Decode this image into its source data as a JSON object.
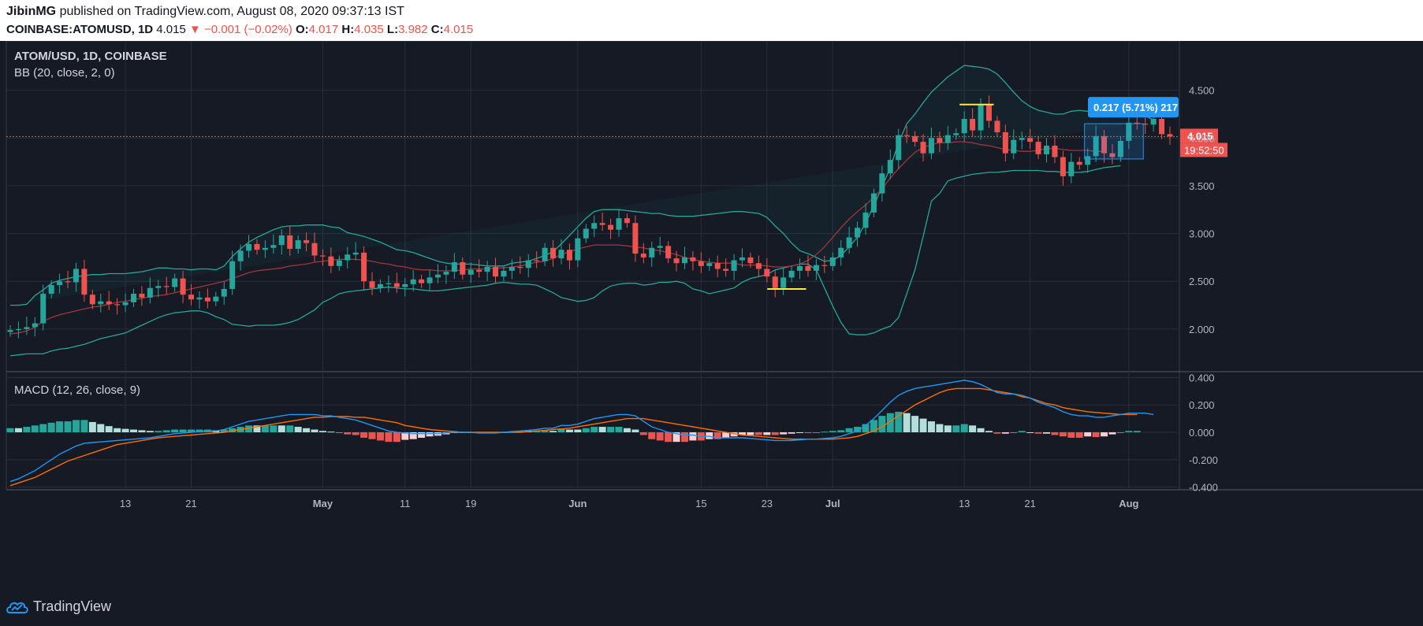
{
  "header": {
    "author": "JibinMG",
    "published_text": "published on TradingView.com, August 08, 2020 09:37:13 IST",
    "symbol": "COINBASE:ATOMUSD, 1D",
    "last": "4.015",
    "change": "−0.001 (−0.02%)",
    "open_label": "O:",
    "open": "4.017",
    "high_label": "H:",
    "high": "4.035",
    "low_label": "L:",
    "low": "3.982",
    "close_label": "C:",
    "close": "4.015"
  },
  "footer": {
    "brand": "TradingView"
  },
  "colors": {
    "up": "#26a69a",
    "down": "#ef5350",
    "bb_band": "#26a69a",
    "bb_basis": "#a0363b",
    "macd": "#2196f3",
    "signal": "#ff6d00",
    "hist_up_strong": "#26a69a",
    "hist_up_weak": "#b2dfdb",
    "hist_down_strong": "#ef5350",
    "hist_down_weak": "#ffcdd2"
  },
  "chart_data": [
    {
      "type": "candlestick",
      "title": "ATOM/USD, 1D, COINBASE",
      "indicator": "BB (20, close, 2, 0)",
      "x_ticks": [
        "13",
        "21",
        "May",
        "11",
        "19",
        "Jun",
        "15",
        "23",
        "Jul",
        "13",
        "21",
        "Aug"
      ],
      "y_ticks": [
        "2.000",
        "2.500",
        "3.000",
        "3.500",
        "4.000",
        "4.500"
      ],
      "ylim": [
        1.62,
        4.95
      ],
      "last_price_label": "4.015",
      "countdown_label": "19:52:50",
      "measure_label": "0.217 (5.71%) 217",
      "close": [
        1.99,
        2.0,
        2.02,
        2.06,
        2.37,
        2.46,
        2.5,
        2.49,
        2.63,
        2.36,
        2.26,
        2.29,
        2.26,
        2.25,
        2.28,
        2.37,
        2.33,
        2.43,
        2.45,
        2.44,
        2.53,
        2.36,
        2.31,
        2.33,
        2.29,
        2.34,
        2.42,
        2.71,
        2.82,
        2.89,
        2.83,
        2.85,
        2.88,
        2.98,
        2.84,
        2.93,
        2.9,
        2.77,
        2.76,
        2.66,
        2.72,
        2.78,
        2.8,
        2.5,
        2.43,
        2.47,
        2.48,
        2.44,
        2.47,
        2.52,
        2.48,
        2.54,
        2.57,
        2.6,
        2.7,
        2.57,
        2.62,
        2.6,
        2.65,
        2.55,
        2.61,
        2.65,
        2.64,
        2.72,
        2.71,
        2.85,
        2.74,
        2.83,
        2.72,
        2.95,
        3.05,
        3.11,
        3.09,
        3.04,
        3.16,
        3.11,
        2.79,
        2.75,
        2.85,
        2.87,
        2.74,
        2.69,
        2.75,
        2.71,
        2.66,
        2.69,
        2.63,
        2.61,
        2.72,
        2.75,
        2.69,
        2.63,
        2.55,
        2.43,
        2.54,
        2.61,
        2.66,
        2.61,
        2.67,
        2.66,
        2.75,
        2.85,
        2.96,
        3.06,
        3.22,
        3.42,
        3.63,
        3.77,
        4.03,
        4.02,
        3.96,
        3.84,
        4.0,
        3.95,
        4.03,
        4.05,
        4.2,
        4.08,
        4.35,
        4.18,
        4.06,
        3.84,
        3.98,
        4.0,
        3.96,
        3.83,
        3.92,
        3.8,
        3.6,
        3.75,
        3.72,
        3.81,
        4.02,
        3.84,
        3.8,
        3.97,
        4.16,
        4.15,
        4.14,
        4.2,
        4.04,
        4.015
      ],
      "bb_upper": [
        2.25,
        2.25,
        2.26,
        2.35,
        2.41,
        2.48,
        2.51,
        2.53,
        2.55,
        2.56,
        2.57,
        2.57,
        2.58,
        2.58,
        2.58,
        2.59,
        2.6,
        2.62,
        2.64,
        2.64,
        2.63,
        2.63,
        2.62,
        2.63,
        2.63,
        2.62,
        2.66,
        2.76,
        2.84,
        2.91,
        2.96,
        3.0,
        3.04,
        3.07,
        3.08,
        3.08,
        3.09,
        3.09,
        3.09,
        3.07,
        3.06,
        3.01,
        2.99,
        2.97,
        2.94,
        2.91,
        2.87,
        2.83,
        2.82,
        2.8,
        2.77,
        2.74,
        2.71,
        2.69,
        2.68,
        2.68,
        2.68,
        2.67,
        2.66,
        2.66,
        2.66,
        2.69,
        2.7,
        2.71,
        2.74,
        2.77,
        2.81,
        2.89,
        2.98,
        3.07,
        3.16,
        3.23,
        3.25,
        3.25,
        3.25,
        3.24,
        3.23,
        3.22,
        3.21,
        3.21,
        3.19,
        3.18,
        3.18,
        3.18,
        3.19,
        3.2,
        3.21,
        3.22,
        3.23,
        3.23,
        3.22,
        3.21,
        3.17,
        3.08,
        3.0,
        2.9,
        2.82,
        2.79,
        2.75,
        2.71,
        2.72,
        2.77,
        2.86,
        2.96,
        3.11,
        3.29,
        3.49,
        3.69,
        3.95,
        4.15,
        4.25,
        4.37,
        4.48,
        4.56,
        4.64,
        4.7,
        4.76,
        4.75,
        4.74,
        4.72,
        4.67,
        4.58,
        4.48,
        4.39,
        4.33,
        4.29,
        4.27,
        4.25,
        4.25,
        4.28,
        4.29,
        4.28,
        4.27,
        4.26,
        4.25,
        4.24,
        4.25,
        4.26,
        4.23,
        4.19
      ],
      "bb_basis": [
        1.95,
        1.96,
        1.98,
        2.02,
        2.08,
        2.12,
        2.15,
        2.17,
        2.19,
        2.21,
        2.23,
        2.24,
        2.26,
        2.28,
        2.29,
        2.31,
        2.32,
        2.34,
        2.35,
        2.36,
        2.38,
        2.4,
        2.42,
        2.44,
        2.46,
        2.48,
        2.5,
        2.53,
        2.56,
        2.59,
        2.61,
        2.62,
        2.63,
        2.64,
        2.66,
        2.67,
        2.68,
        2.7,
        2.71,
        2.72,
        2.73,
        2.73,
        2.73,
        2.72,
        2.71,
        2.69,
        2.68,
        2.66,
        2.65,
        2.63,
        2.62,
        2.62,
        2.61,
        2.61,
        2.61,
        2.62,
        2.63,
        2.63,
        2.63,
        2.64,
        2.64,
        2.65,
        2.66,
        2.68,
        2.7,
        2.71,
        2.74,
        2.78,
        2.81,
        2.84,
        2.86,
        2.88,
        2.88,
        2.88,
        2.88,
        2.87,
        2.86,
        2.85,
        2.83,
        2.82,
        2.8,
        2.78,
        2.75,
        2.73,
        2.71,
        2.7,
        2.69,
        2.69,
        2.69,
        2.67,
        2.67,
        2.67,
        2.66,
        2.65,
        2.65,
        2.66,
        2.68,
        2.72,
        2.78,
        2.86,
        2.96,
        3.06,
        3.15,
        3.23,
        3.3,
        3.38,
        3.47,
        3.58,
        3.68,
        3.77,
        3.85,
        3.9,
        3.93,
        3.95,
        3.95,
        3.96,
        3.96,
        3.95,
        3.93,
        3.92,
        3.9,
        3.88,
        3.87,
        3.86,
        3.86,
        3.87,
        3.89,
        3.89,
        3.88,
        3.87,
        3.87,
        3.87,
        3.86,
        3.86
      ],
      "bb_lower": [
        1.72,
        1.73,
        1.74,
        1.74,
        1.74,
        1.77,
        1.79,
        1.8,
        1.82,
        1.84,
        1.87,
        1.9,
        1.92,
        1.94,
        1.96,
        2.0,
        2.04,
        2.08,
        2.12,
        2.15,
        2.17,
        2.18,
        2.19,
        2.19,
        2.17,
        2.13,
        2.1,
        2.05,
        2.04,
        2.03,
        2.04,
        2.04,
        2.04,
        2.05,
        2.07,
        2.1,
        2.15,
        2.2,
        2.28,
        2.32,
        2.37,
        2.39,
        2.4,
        2.41,
        2.42,
        2.43,
        2.44,
        2.43,
        2.42,
        2.42,
        2.41,
        2.4,
        2.4,
        2.41,
        2.42,
        2.43,
        2.44,
        2.45,
        2.46,
        2.48,
        2.49,
        2.48,
        2.47,
        2.47,
        2.46,
        2.42,
        2.38,
        2.33,
        2.31,
        2.29,
        2.3,
        2.33,
        2.4,
        2.45,
        2.47,
        2.48,
        2.48,
        2.46,
        2.47,
        2.49,
        2.49,
        2.5,
        2.48,
        2.42,
        2.4,
        2.37,
        2.39,
        2.41,
        2.43,
        2.49,
        2.53,
        2.55,
        2.57,
        2.62,
        2.64,
        2.66,
        2.68,
        2.68,
        2.62,
        2.43,
        2.24,
        2.07,
        1.95,
        1.94,
        1.94,
        1.96,
        2.0,
        2.03,
        2.12,
        2.37,
        2.62,
        2.97,
        3.34,
        3.42,
        3.55,
        3.58,
        3.6,
        3.62,
        3.63,
        3.64,
        3.64,
        3.65,
        3.66,
        3.66,
        3.66,
        3.66,
        3.65,
        3.65,
        3.64,
        3.64,
        3.64,
        3.65,
        3.67,
        3.69,
        3.7,
        3.71
      ]
    },
    {
      "type": "macd",
      "title": "MACD (12, 26, close, 9)",
      "y_ticks": [
        "-0.400",
        "-0.200",
        "0.000",
        "0.200",
        "0.400"
      ],
      "ylim": [
        -0.42,
        0.42
      ],
      "macd": [
        -0.36,
        -0.34,
        -0.31,
        -0.28,
        -0.24,
        -0.2,
        -0.16,
        -0.13,
        -0.1,
        -0.08,
        -0.075,
        -0.07,
        -0.065,
        -0.06,
        -0.055,
        -0.05,
        -0.045,
        -0.04,
        -0.03,
        -0.02,
        -0.01,
        -0.005,
        0.0,
        0.005,
        0.01,
        0.01,
        0.02,
        0.04,
        0.06,
        0.08,
        0.09,
        0.1,
        0.11,
        0.12,
        0.13,
        0.13,
        0.13,
        0.13,
        0.12,
        0.12,
        0.11,
        0.1,
        0.09,
        0.07,
        0.05,
        0.03,
        0.01,
        0.0,
        -0.005,
        -0.01,
        -0.01,
        -0.01,
        -0.01,
        -0.005,
        0.0,
        0.0,
        0.0,
        -0.005,
        -0.005,
        -0.005,
        0.0,
        0.005,
        0.01,
        0.015,
        0.02,
        0.03,
        0.03,
        0.05,
        0.05,
        0.06,
        0.08,
        0.1,
        0.11,
        0.12,
        0.13,
        0.13,
        0.12,
        0.08,
        0.04,
        0.02,
        0.0,
        -0.01,
        -0.02,
        -0.02,
        -0.03,
        -0.03,
        -0.04,
        -0.04,
        -0.04,
        -0.04,
        -0.045,
        -0.05,
        -0.055,
        -0.06,
        -0.06,
        -0.06,
        -0.055,
        -0.05,
        -0.05,
        -0.045,
        -0.04,
        -0.03,
        -0.01,
        0.01,
        0.05,
        0.1,
        0.16,
        0.22,
        0.27,
        0.3,
        0.32,
        0.33,
        0.34,
        0.35,
        0.36,
        0.37,
        0.38,
        0.37,
        0.35,
        0.32,
        0.29,
        0.28,
        0.28,
        0.27,
        0.25,
        0.22,
        0.2,
        0.18,
        0.15,
        0.13,
        0.12,
        0.12,
        0.11,
        0.11,
        0.12,
        0.13,
        0.14,
        0.14,
        0.14,
        0.13
      ],
      "signal": [
        -0.39,
        -0.37,
        -0.35,
        -0.33,
        -0.3,
        -0.27,
        -0.24,
        -0.21,
        -0.19,
        -0.17,
        -0.15,
        -0.13,
        -0.11,
        -0.09,
        -0.08,
        -0.07,
        -0.06,
        -0.05,
        -0.04,
        -0.035,
        -0.03,
        -0.025,
        -0.02,
        -0.015,
        -0.01,
        -0.005,
        0.0,
        0.01,
        0.02,
        0.03,
        0.04,
        0.05,
        0.06,
        0.07,
        0.08,
        0.09,
        0.1,
        0.11,
        0.11,
        0.115,
        0.115,
        0.115,
        0.11,
        0.11,
        0.1,
        0.09,
        0.08,
        0.07,
        0.05,
        0.04,
        0.03,
        0.02,
        0.015,
        0.01,
        0.005,
        0.0,
        0.0,
        0.0,
        0.0,
        0.0,
        0.0,
        0.0,
        0.0,
        0.005,
        0.01,
        0.015,
        0.02,
        0.025,
        0.03,
        0.04,
        0.05,
        0.06,
        0.07,
        0.08,
        0.09,
        0.1,
        0.1,
        0.1,
        0.09,
        0.08,
        0.07,
        0.06,
        0.05,
        0.04,
        0.03,
        0.02,
        0.01,
        0.0,
        -0.01,
        -0.02,
        -0.025,
        -0.03,
        -0.035,
        -0.04,
        -0.045,
        -0.05,
        -0.05,
        -0.05,
        -0.05,
        -0.05,
        -0.05,
        -0.045,
        -0.04,
        -0.03,
        -0.01,
        0.01,
        0.04,
        0.08,
        0.12,
        0.16,
        0.2,
        0.23,
        0.26,
        0.29,
        0.31,
        0.32,
        0.32,
        0.32,
        0.32,
        0.31,
        0.3,
        0.29,
        0.28,
        0.26,
        0.25,
        0.23,
        0.21,
        0.2,
        0.18,
        0.17,
        0.16,
        0.15,
        0.145,
        0.14,
        0.135,
        0.13,
        0.13,
        0.13
      ]
    }
  ]
}
